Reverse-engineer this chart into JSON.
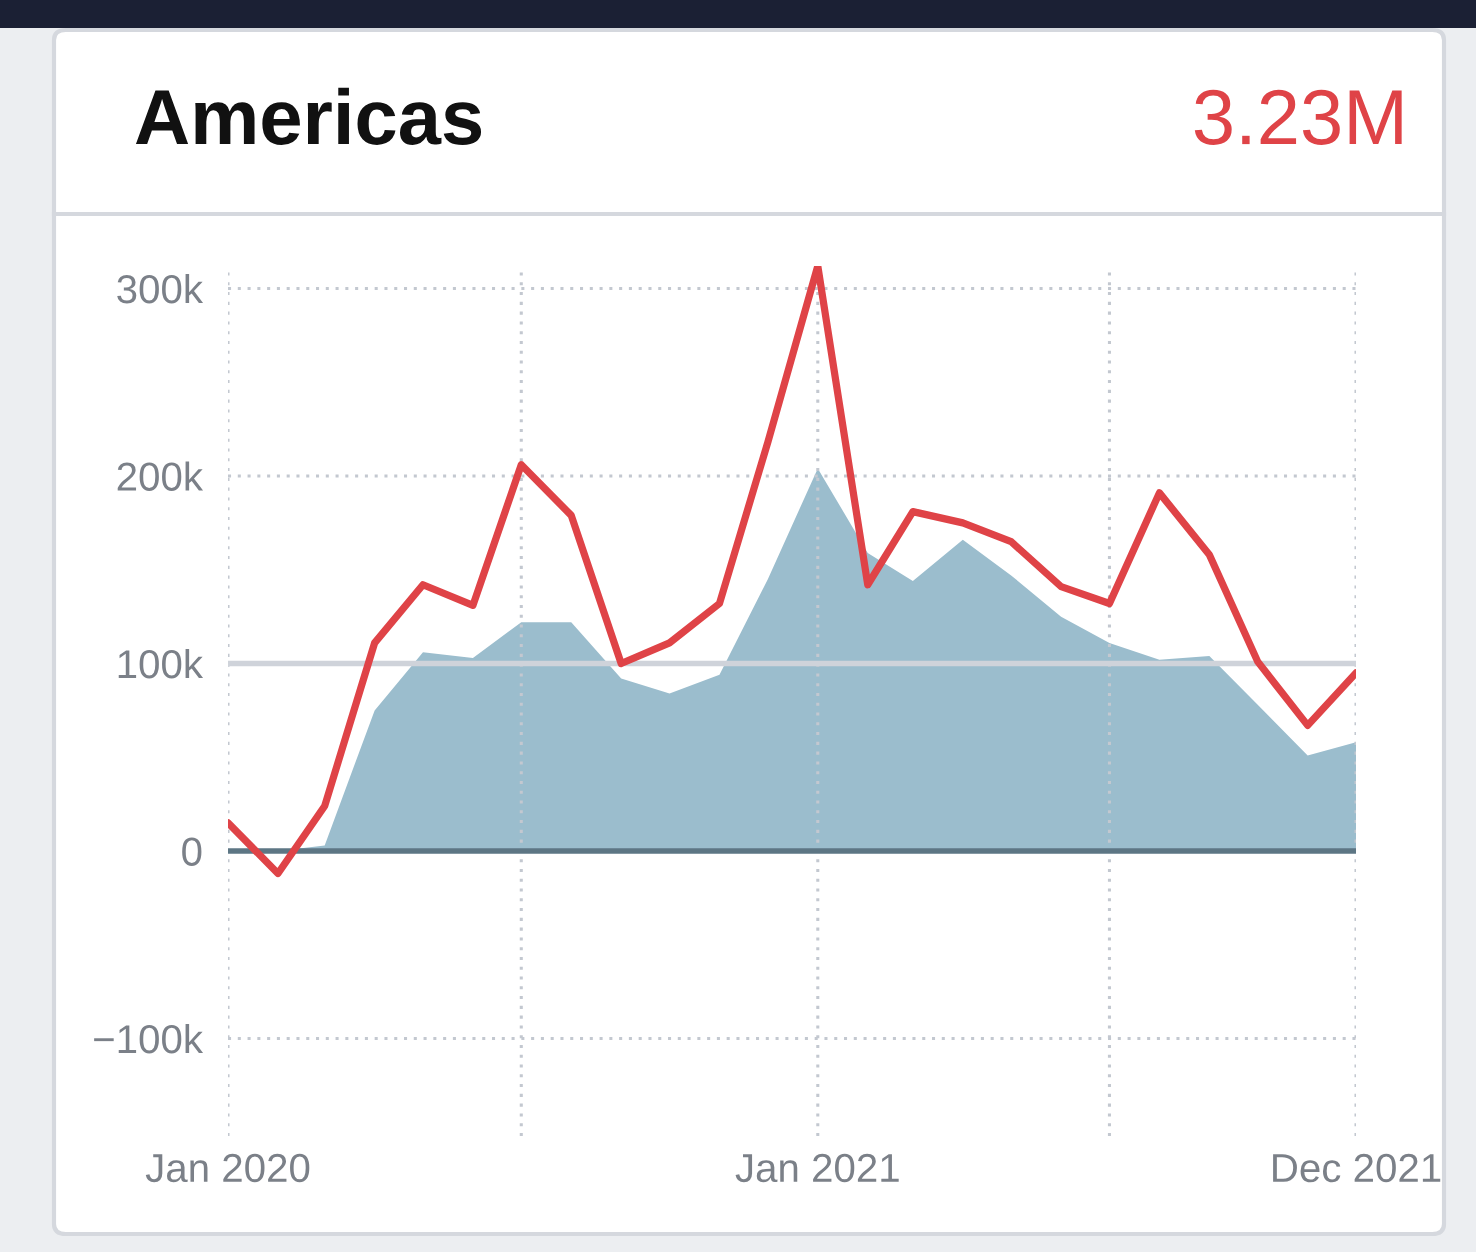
{
  "chart_data": {
    "type": "line",
    "title": "Americas",
    "subtitle": "3.23M",
    "x": [
      "2020-01",
      "2020-02",
      "2020-03",
      "2020-04",
      "2020-05",
      "2020-06",
      "2020-07",
      "2020-08",
      "2020-09",
      "2020-10",
      "2020-11",
      "2020-12",
      "2021-01",
      "2021-02",
      "2021-03",
      "2021-04",
      "2021-05",
      "2021-06",
      "2021-07",
      "2021-08",
      "2021-09",
      "2021-10",
      "2021-11",
      "2021-12"
    ],
    "series": [
      {
        "type": "area",
        "color": "#9bbdcd",
        "values": [
          0,
          0,
          3000,
          75000,
          106000,
          103000,
          122000,
          122000,
          92000,
          84000,
          94000,
          145000,
          204000,
          159000,
          144000,
          166000,
          147000,
          125000,
          111000,
          102000,
          104000,
          78000,
          51000,
          58000
        ]
      },
      {
        "color": "#df4347",
        "values": [
          15000,
          -12000,
          24000,
          111000,
          142000,
          131000,
          206000,
          179000,
          100000,
          111000,
          132000,
          218000,
          312000,
          142000,
          181000,
          175000,
          165000,
          141000,
          132000,
          191000,
          158000,
          101000,
          67000,
          95000
        ]
      }
    ],
    "xlim": [
      "2020-01",
      "2021-12"
    ],
    "xticks": [
      {
        "value": "2020-01",
        "label": "Jan 2020"
      },
      {
        "value": "2020-07",
        "label": null
      },
      {
        "value": "2021-01",
        "label": "Jan 2021"
      },
      {
        "value": "2021-07",
        "label": null
      },
      {
        "value": "2021-12",
        "label": "Dec 2021"
      }
    ],
    "ylim": [
      -152000,
      312000
    ],
    "yticks": [
      {
        "value": -100000,
        "label": "−100k"
      },
      {
        "value": 0,
        "label": "0"
      },
      {
        "value": 100000,
        "label": "100k"
      },
      {
        "value": 200000,
        "label": "200k"
      },
      {
        "value": 300000,
        "label": "300k"
      }
    ],
    "grid": true,
    "ref_lines": [
      {
        "axis": "y",
        "value": 100000,
        "color": "#cfd3da",
        "line_style": "solid"
      },
      {
        "axis": "y",
        "value": 0,
        "color": "#5d7684",
        "line_style": "solid"
      }
    ]
  }
}
